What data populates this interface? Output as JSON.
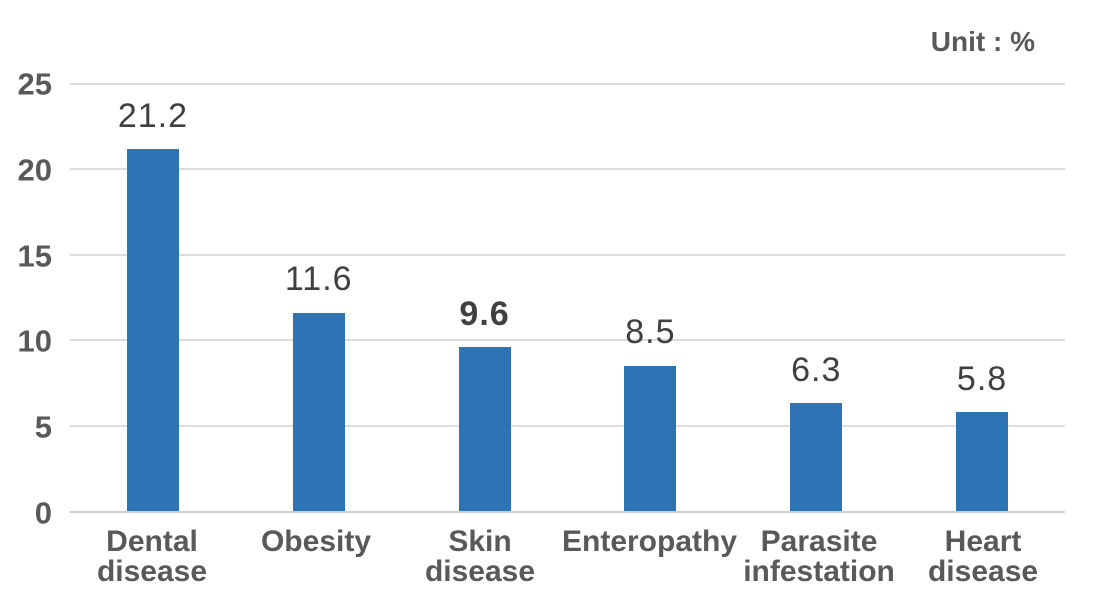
{
  "chart_data": {
    "type": "bar",
    "title": "",
    "unit_label": "Unit : %",
    "categories": [
      "Dental\ndisease",
      "Obesity",
      "Skin\ndisease",
      "Enteropathy",
      "Parasite\ninfestation",
      "Heart\ndisease"
    ],
    "values": [
      21.2,
      11.6,
      9.6,
      8.5,
      6.3,
      5.8
    ],
    "value_labels": [
      "21.2",
      "11.6",
      "9.6",
      "8.5",
      "6.3",
      "5.8"
    ],
    "value_label_bold": [
      false,
      false,
      true,
      false,
      false,
      false
    ],
    "y_ticks": [
      0,
      5,
      10,
      15,
      20,
      25
    ],
    "ylim": [
      0,
      25
    ],
    "xlabel": "",
    "ylabel": "",
    "grid": true,
    "legend": "none",
    "colors": {
      "bar": "#2E74B5",
      "gridline": "#DCDCDC",
      "axis_line": "#D0D0D0",
      "tick_label": "#595959",
      "value_label": "#404040",
      "category_label": "#595959",
      "unit_label": "#595959"
    }
  }
}
